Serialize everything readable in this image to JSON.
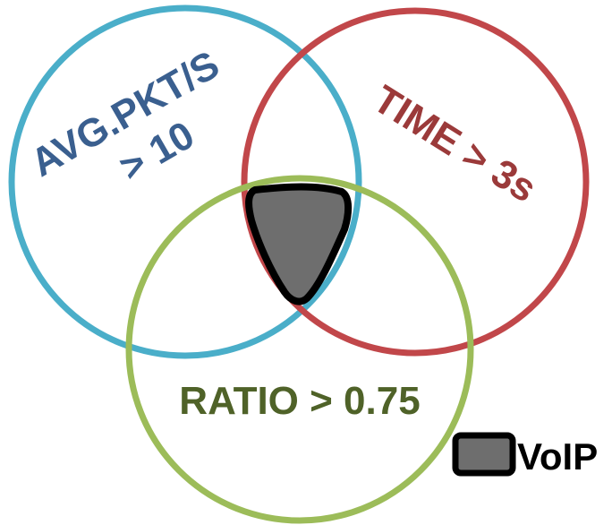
{
  "colors": {
    "circle_avg_pkt": "#4aaec9",
    "circle_time": "#c1474a",
    "circle_ratio": "#9cbc59",
    "label_avg_pkt": "#3a5f8f",
    "label_time": "#9b3a3a",
    "label_ratio": "#4f6228",
    "voip_fill": "#6e6e6e",
    "voip_stroke": "#000000",
    "legend_text": "#000000"
  },
  "sets": {
    "avg_pkt": {
      "line1": "AVG.PKT/S",
      "line2": "> 10"
    },
    "time": {
      "label": "TIME > 3s"
    },
    "ratio": {
      "label": "RATIO > 0.75"
    }
  },
  "legend": {
    "label": "VoIP"
  }
}
